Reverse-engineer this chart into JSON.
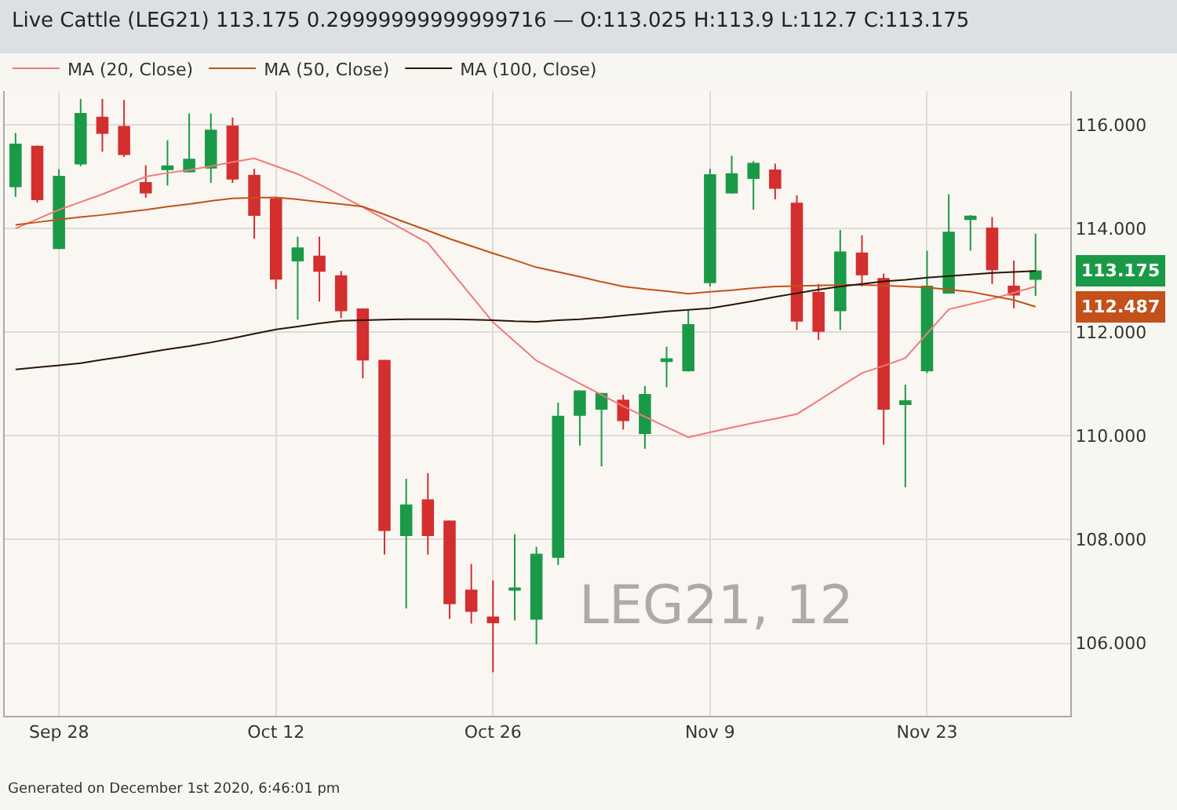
{
  "chart_data": {
    "type": "candlestick",
    "title": "Live Cattle (LEG21) 113.175 0.29999999999999716 — O:113.025 H:113.9 L:112.7 C:113.175",
    "categories": [
      null,
      null,
      "Sep 28",
      null,
      null,
      null,
      null,
      null,
      null,
      null,
      null,
      null,
      "Oct 12",
      null,
      null,
      null,
      null,
      null,
      null,
      null,
      null,
      null,
      "Oct 26",
      null,
      null,
      null,
      null,
      null,
      null,
      null,
      null,
      null,
      "Nov 9",
      null,
      null,
      null,
      null,
      null,
      null,
      null,
      null,
      null,
      "Nov 23",
      null,
      null,
      null,
      null,
      null
    ],
    "ohlc": [
      [
        114.81,
        115.84,
        114.61,
        115.62
      ],
      [
        115.58,
        115.6,
        114.5,
        114.56
      ],
      [
        113.62,
        115.14,
        113.6,
        115.0
      ],
      [
        115.25,
        116.5,
        115.2,
        116.21
      ],
      [
        116.14,
        116.5,
        115.48,
        115.84
      ],
      [
        115.96,
        116.48,
        115.38,
        115.43
      ],
      [
        114.88,
        115.22,
        114.59,
        114.69
      ],
      [
        115.14,
        115.7,
        114.83,
        115.2
      ],
      [
        115.1,
        116.22,
        115.08,
        115.33
      ],
      [
        115.17,
        116.22,
        114.88,
        115.89
      ],
      [
        115.97,
        116.14,
        114.88,
        114.96
      ],
      [
        115.02,
        115.15,
        113.8,
        114.26
      ],
      [
        114.56,
        114.6,
        112.83,
        113.03
      ],
      [
        113.38,
        113.84,
        112.24,
        113.62
      ],
      [
        113.46,
        113.84,
        112.59,
        113.18
      ],
      [
        113.08,
        113.18,
        112.27,
        112.42
      ],
      [
        112.44,
        112.46,
        111.11,
        111.47
      ],
      [
        111.45,
        111.47,
        107.71,
        108.18
      ],
      [
        108.08,
        109.17,
        106.67,
        108.66
      ],
      [
        108.76,
        109.28,
        107.71,
        108.08
      ],
      [
        108.35,
        108.37,
        106.47,
        106.77
      ],
      [
        107.02,
        107.53,
        106.38,
        106.62
      ],
      [
        106.5,
        107.21,
        105.44,
        106.4
      ],
      [
        107.03,
        108.1,
        106.44,
        107.06
      ],
      [
        106.47,
        107.86,
        105.98,
        107.71
      ],
      [
        107.66,
        110.64,
        107.51,
        110.37
      ],
      [
        110.4,
        110.88,
        109.81,
        110.86
      ],
      [
        110.52,
        110.83,
        109.41,
        110.81
      ],
      [
        110.68,
        110.79,
        110.12,
        110.3
      ],
      [
        110.05,
        110.96,
        109.75,
        110.79
      ],
      [
        111.44,
        111.72,
        110.94,
        111.48
      ],
      [
        111.26,
        112.44,
        111.24,
        112.14
      ],
      [
        112.96,
        115.15,
        112.88,
        115.03
      ],
      [
        114.69,
        115.4,
        114.67,
        115.05
      ],
      [
        114.97,
        115.3,
        114.36,
        115.25
      ],
      [
        115.12,
        115.25,
        114.56,
        114.78
      ],
      [
        114.48,
        114.64,
        112.04,
        112.22
      ],
      [
        112.76,
        112.93,
        111.85,
        112.02
      ],
      [
        112.42,
        113.97,
        112.04,
        113.54
      ],
      [
        113.52,
        113.87,
        112.88,
        113.11
      ],
      [
        113.03,
        113.13,
        109.83,
        110.52
      ],
      [
        110.61,
        110.99,
        109.01,
        110.67
      ],
      [
        111.26,
        113.57,
        111.21,
        112.88
      ],
      [
        112.76,
        114.66,
        112.74,
        113.92
      ],
      [
        114.18,
        114.26,
        113.57,
        114.23
      ],
      [
        114.0,
        114.22,
        112.93,
        113.21
      ],
      [
        112.88,
        113.38,
        112.46,
        112.72
      ],
      [
        113.025,
        113.9,
        112.7,
        113.175
      ]
    ],
    "colors": [
      "#1a9a47",
      "#d32f2f",
      "#1a9a47",
      "#1a9a47",
      "#d32f2f",
      "#d32f2f",
      "#d32f2f",
      "#1a9a47",
      "#1a9a47",
      "#1a9a47",
      "#d32f2f",
      "#d32f2f",
      "#d32f2f",
      "#1a9a47",
      "#d32f2f",
      "#d32f2f",
      "#d32f2f",
      "#d32f2f",
      "#1a9a47",
      "#d32f2f",
      "#d32f2f",
      "#d32f2f",
      "#d32f2f",
      "#1a9a47",
      "#1a9a47",
      "#1a9a47",
      "#1a9a47",
      "#1a9a47",
      "#d32f2f",
      "#1a9a47",
      "#1a9a47",
      "#1a9a47",
      "#1a9a47",
      "#1a9a47",
      "#1a9a47",
      "#d32f2f",
      "#d32f2f",
      "#d32f2f",
      "#1a9a47",
      "#d32f2f",
      "#d32f2f",
      "#1a9a47",
      "#1a9a47",
      "#1a9a47",
      "#1a9a47",
      "#d32f2f",
      "#d32f2f",
      "#1a9a47"
    ],
    "series": [
      {
        "type": "line",
        "name": "MA (20, Close)",
        "color": "#f07a7a",
        "values": [
          114.0,
          114.18,
          114.36,
          114.51,
          114.66,
          114.83,
          115.0,
          115.07,
          115.13,
          115.2,
          115.28,
          115.35,
          115.2,
          115.05,
          114.85,
          114.63,
          114.41,
          114.18,
          113.95,
          113.72,
          113.21,
          112.7,
          112.19,
          111.82,
          111.45,
          111.23,
          111.01,
          110.79,
          110.57,
          110.37,
          110.17,
          109.97,
          110.07,
          110.16,
          110.25,
          110.33,
          110.42,
          110.68,
          110.95,
          111.21,
          111.35,
          111.5,
          111.97,
          112.44,
          112.54,
          112.64,
          112.76,
          112.88
        ]
      },
      {
        "type": "line",
        "name": "MA (50, Close)",
        "color": "#c4501a",
        "values": [
          114.07,
          114.12,
          114.17,
          114.22,
          114.26,
          114.31,
          114.36,
          114.42,
          114.47,
          114.53,
          114.58,
          114.59,
          114.6,
          114.56,
          114.51,
          114.47,
          114.42,
          114.27,
          114.11,
          113.96,
          113.8,
          113.66,
          113.52,
          113.39,
          113.25,
          113.16,
          113.07,
          112.97,
          112.88,
          112.83,
          112.79,
          112.74,
          112.78,
          112.81,
          112.85,
          112.88,
          112.89,
          112.9,
          112.91,
          112.91,
          112.9,
          112.88,
          112.86,
          112.82,
          112.78,
          112.7,
          112.62,
          112.49
        ]
      },
      {
        "type": "line",
        "name": "MA (100, Close)",
        "color": "#2b1408",
        "values": [
          111.28,
          111.32,
          111.36,
          111.4,
          111.47,
          111.53,
          111.6,
          111.67,
          111.73,
          111.8,
          111.88,
          111.97,
          112.05,
          112.11,
          112.17,
          112.22,
          112.23,
          112.24,
          112.25,
          112.25,
          112.25,
          112.24,
          112.23,
          112.21,
          112.2,
          112.23,
          112.25,
          112.28,
          112.32,
          112.36,
          112.4,
          112.43,
          112.46,
          112.53,
          112.6,
          112.68,
          112.75,
          112.82,
          112.88,
          112.93,
          112.98,
          113.01,
          113.05,
          113.08,
          113.11,
          113.14,
          113.16,
          113.18
        ]
      }
    ],
    "ylim": [
      104.6,
      116.65
    ],
    "yticks": [
      {
        "value": 106,
        "label": "106.000"
      },
      {
        "value": 108,
        "label": "108.000"
      },
      {
        "value": 110,
        "label": "110.000"
      },
      {
        "value": 112,
        "label": "112.000"
      },
      {
        "value": 114,
        "label": "114.000"
      },
      {
        "value": 116,
        "label": "116.000"
      }
    ],
    "grid": true,
    "legend": "top left",
    "annotations": [
      "LEG21, 12",
      "Generated on December 1st 2020, 6:46:01 pm",
      "113.175",
      "112.487"
    ]
  }
}
